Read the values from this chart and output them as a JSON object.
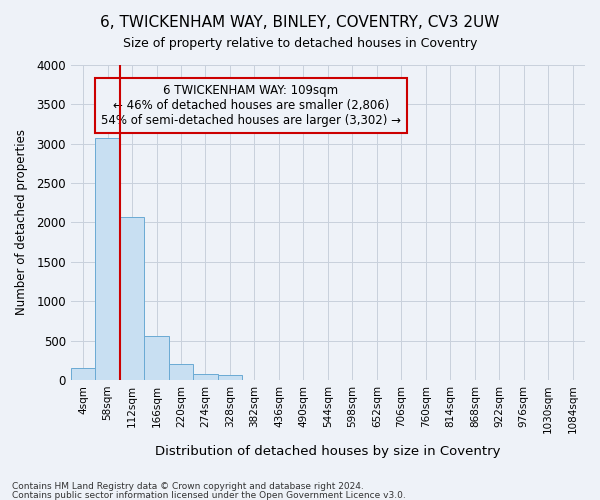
{
  "title": "6, TWICKENHAM WAY, BINLEY, COVENTRY, CV3 2UW",
  "subtitle": "Size of property relative to detached houses in Coventry",
  "xlabel": "Distribution of detached houses by size in Coventry",
  "ylabel": "Number of detached properties",
  "bin_labels": [
    "4sqm",
    "58sqm",
    "112sqm",
    "166sqm",
    "220sqm",
    "274sqm",
    "328sqm",
    "382sqm",
    "436sqm",
    "490sqm",
    "544sqm",
    "598sqm",
    "652sqm",
    "706sqm",
    "760sqm",
    "814sqm",
    "868sqm",
    "922sqm",
    "976sqm",
    "1030sqm",
    "1084sqm"
  ],
  "bar_values": [
    150,
    3070,
    2075,
    560,
    200,
    70,
    60,
    0,
    0,
    0,
    0,
    0,
    0,
    0,
    0,
    0,
    0,
    0,
    0,
    0,
    0
  ],
  "bar_color": "#c8dff2",
  "bar_edge_color": "#6aaad4",
  "vline_x": 2.0,
  "vline_color": "#cc0000",
  "annotation_line1": "6 TWICKENHAM WAY: 109sqm",
  "annotation_line2": "← 46% of detached houses are smaller (2,806)",
  "annotation_line3": "54% of semi-detached houses are larger (3,302) →",
  "annotation_box_color": "#cc0000",
  "ylim": [
    0,
    4000
  ],
  "yticks": [
    0,
    500,
    1000,
    1500,
    2000,
    2500,
    3000,
    3500,
    4000
  ],
  "grid_color": "#c8d0dc",
  "bg_color": "#eef2f8",
  "plot_bg": "#eef2f8",
  "footer_line1": "Contains HM Land Registry data © Crown copyright and database right 2024.",
  "footer_line2": "Contains public sector information licensed under the Open Government Licence v3.0.",
  "title_fontsize": 11,
  "subtitle_fontsize": 9
}
